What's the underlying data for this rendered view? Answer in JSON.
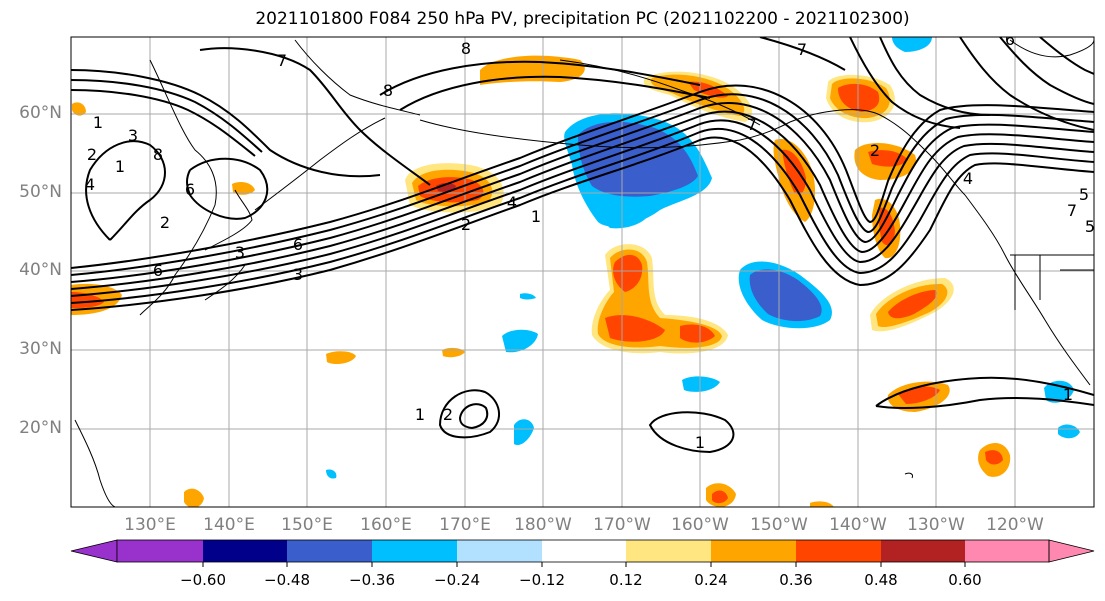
{
  "title": "2021101800 F084 250 hPa PV, precipitation PC (2021102200 - 2021102300)",
  "map": {
    "latitude_labels": [
      "60°N",
      "50°N",
      "40°N",
      "30°N",
      "20°N"
    ],
    "longitude_labels": [
      "130°E",
      "140°E",
      "150°E",
      "160°E",
      "170°E",
      "180°W",
      "170°W",
      "160°W",
      "150°W",
      "140°W",
      "130°W",
      "120°W"
    ],
    "contour_labels": [
      "7",
      "7",
      "8",
      "1",
      "3",
      "8",
      "6",
      "2",
      "4",
      "1",
      "2",
      "3",
      "6",
      "6",
      "3",
      "5",
      "7",
      "6",
      "8",
      "4",
      "2",
      "1",
      "7",
      "2",
      "4",
      "5",
      "1",
      "2",
      "1",
      "1"
    ],
    "grid": true,
    "colors": {
      "contour": "#000000",
      "grid": "#a0a0a0",
      "coast": "#000000"
    }
  },
  "colorbar": {
    "levels": [
      -0.6,
      -0.48,
      -0.36,
      -0.24,
      -0.12,
      0.12,
      0.24,
      0.36,
      0.48,
      0.6
    ],
    "tick_labels": [
      "−0.60",
      "−0.48",
      "−0.36",
      "−0.24",
      "−0.12",
      "0.12",
      "0.24",
      "0.36",
      "0.48",
      "0.60"
    ],
    "colors": [
      "#9932cc",
      "#00008b",
      "#3a5fcd",
      "#00bfff",
      "#b2e0ff",
      "#ffffff",
      "#ffe680",
      "#ffa500",
      "#ff4500",
      "#b22222",
      "#ff88b0"
    ],
    "extend": "both"
  },
  "shading": {
    "negative_regions": [
      {
        "label": "Gulf of Alaska south",
        "level": -0.36
      },
      {
        "label": "NE Pacific 40N 145W",
        "level": -0.36
      },
      {
        "label": "Canada north",
        "level": -0.24
      },
      {
        "label": "Scattered small cells",
        "level": -0.24
      }
    ],
    "positive_regions": [
      {
        "label": "Japan east 50N",
        "level": 0.48
      },
      {
        "label": "Central Pacific 35N",
        "level": 0.36
      },
      {
        "label": "Alaska south",
        "level": 0.36
      },
      {
        "label": "Pacific NW",
        "level": 0.36
      },
      {
        "label": "East Pacific 25N",
        "level": 0.36
      }
    ]
  }
}
